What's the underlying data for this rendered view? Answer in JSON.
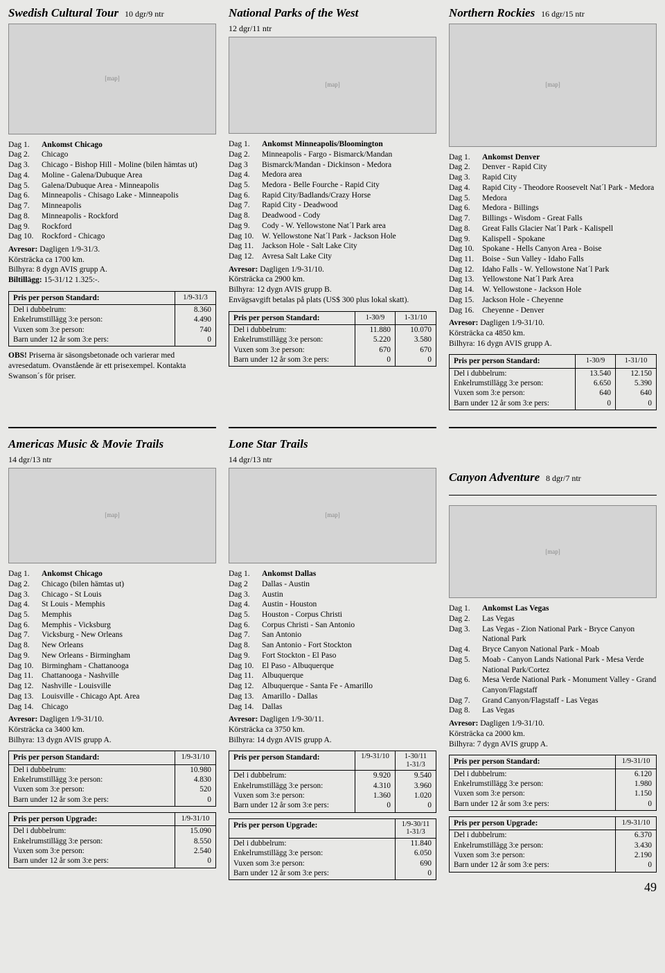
{
  "page_number": "49",
  "row_labels": {
    "dubbelrum": "Del i dubbelrum:",
    "enkel": "Enkelrumstillägg 3:e person:",
    "vuxen": "Vuxen som 3:e person:",
    "barn": "Barn under 12 år som 3:e pers:"
  },
  "tours": {
    "swedish": {
      "title": "Swedish Cultural Tour",
      "sub": "10 dgr/9 ntr",
      "map_h": 160,
      "itinerary": [
        {
          "day": "Dag 1.",
          "text": "Ankomst Chicago",
          "bold": true
        },
        {
          "day": "Dag 2.",
          "text": "Chicago"
        },
        {
          "day": "Dag 3.",
          "text": "Chicago - Bishop Hill - Moline (bilen hämtas ut)"
        },
        {
          "day": "Dag 4.",
          "text": "Moline - Galena/Dubuque Area"
        },
        {
          "day": "Dag 5.",
          "text": "Galena/Dubuque Area - Minneapolis"
        },
        {
          "day": "Dag 6.",
          "text": "Minneapolis - Chisago Lake - Minneapolis"
        },
        {
          "day": "Dag 7.",
          "text": "Minneapolis"
        },
        {
          "day": "Dag 8.",
          "text": "Minneapolis - Rockford"
        },
        {
          "day": "Dag 9.",
          "text": "Rockford"
        },
        {
          "day": "Dag 10.",
          "text": "Rockford - Chicago"
        }
      ],
      "info": [
        {
          "lbl": "Avresor:",
          "txt": " Dagligen 1/9-31/3."
        },
        {
          "lbl": "",
          "txt": "Körsträcka ca 1700 km."
        },
        {
          "lbl": "",
          "txt": "Bilhyra: 8 dygn AVIS grupp A."
        },
        {
          "lbl": "Biltillägg:",
          "txt": " 15-31/12 1.325:-."
        }
      ],
      "tables": [
        {
          "head_label": "Pris per person Standard:",
          "cols": [
            "1/9-31/3"
          ],
          "rows": [
            [
              "8.360"
            ],
            [
              "4.490"
            ],
            [
              "740"
            ],
            [
              "0"
            ]
          ]
        }
      ],
      "note": {
        "lbl": "OBS!",
        "txt": " Priserna är säsongsbetonade och varierar med avresedatum. Ovanstående är ett prisexempel. Kontakta Swanson´s för priser."
      }
    },
    "natparks": {
      "title": "National Parks of the West",
      "sub": "12 dgr/11 ntr",
      "map_h": 140,
      "itinerary": [
        {
          "day": "Dag 1.",
          "text": "Ankomst Minneapolis/Bloomington",
          "bold": true
        },
        {
          "day": "Dag 2.",
          "text": "Minneapolis - Fargo - Bismarck/Mandan"
        },
        {
          "day": "Dag 3",
          "text": "Bismarck/Mandan - Dickinson - Medora"
        },
        {
          "day": "Dag 4.",
          "text": "Medora area"
        },
        {
          "day": "Dag 5.",
          "text": "Medora - Belle Fourche - Rapid City"
        },
        {
          "day": "Dag 6.",
          "text": "Rapid City/Badlands/Crazy Horse"
        },
        {
          "day": "Dag 7.",
          "text": "Rapid City - Deadwood"
        },
        {
          "day": "Dag 8.",
          "text": "Deadwood - Cody"
        },
        {
          "day": "Dag 9.",
          "text": "Cody - W. Yellowstone Nat´l Park area"
        },
        {
          "day": "Dag 10.",
          "text": "W. Yellowstone Nat´l Park - Jackson Hole"
        },
        {
          "day": "Dag 11.",
          "text": "Jackson Hole - Salt Lake City"
        },
        {
          "day": "Dag 12.",
          "text": "Avresa Salt Lake City"
        }
      ],
      "info": [
        {
          "lbl": "Avresor:",
          "txt": " Dagligen 1/9-31/10."
        },
        {
          "lbl": "",
          "txt": "Körsträcka ca 2900 km."
        },
        {
          "lbl": "",
          "txt": "Bilhyra: 12 dygn AVIS grupp B."
        },
        {
          "lbl": "",
          "txt": "Envägsavgift betalas på plats (US$ 300 plus lokal skatt)."
        }
      ],
      "tables": [
        {
          "head_label": "Pris per person Standard:",
          "cols": [
            "1-30/9",
            "1-31/10"
          ],
          "rows": [
            [
              "11.880",
              "10.070"
            ],
            [
              "5.220",
              "3.580"
            ],
            [
              "670",
              "670"
            ],
            [
              "0",
              "0"
            ]
          ]
        }
      ]
    },
    "rockies": {
      "title": "Northern Rockies",
      "sub": "16 dgr/15 ntr",
      "map_h": 178,
      "itinerary": [
        {
          "day": "Dag 1.",
          "text": "Ankomst Denver",
          "bold": true
        },
        {
          "day": "Dag 2.",
          "text": "Denver - Rapid City"
        },
        {
          "day": "Dag 3.",
          "text": "Rapid City"
        },
        {
          "day": "Dag 4.",
          "text": "Rapid City - Theodore Roosevelt Nat´l Park - Medora"
        },
        {
          "day": "Dag 5.",
          "text": "Medora"
        },
        {
          "day": "Dag 6.",
          "text": "Medora - Billings"
        },
        {
          "day": "Dag 7.",
          "text": "Billings - Wisdom - Great Falls"
        },
        {
          "day": "Dag 8.",
          "text": "Great Falls Glacier Nat´l Park - Kalispell"
        },
        {
          "day": "Dag 9.",
          "text": "Kalispell - Spokane"
        },
        {
          "day": "Dag 10.",
          "text": "Spokane - Hells Canyon Area - Boise"
        },
        {
          "day": "Dag 11.",
          "text": "Boise - Sun  Valley - Idaho Falls"
        },
        {
          "day": "Dag 12.",
          "text": "Idaho Falls - W. Yellowstone Nat´l Park"
        },
        {
          "day": "Dag 13.",
          "text": "Yellowstone Nat´l Park Area"
        },
        {
          "day": "Dag 14.",
          "text": "W. Yellowstone - Jackson Hole"
        },
        {
          "day": "Dag 15.",
          "text": "Jackson Hole - Cheyenne"
        },
        {
          "day": "Dag 16.",
          "text": "Cheyenne - Denver"
        }
      ],
      "info": [
        {
          "lbl": "Avresor:",
          "txt": " Dagligen 1/9-31/10."
        },
        {
          "lbl": "",
          "txt": "Körsträcka ca 4850 km."
        },
        {
          "lbl": "",
          "txt": "Bilhyra: 16 dygn AVIS grupp A."
        }
      ],
      "tables": [
        {
          "head_label": "Pris per person Standard:",
          "cols": [
            "1-30/9",
            "1-31/10"
          ],
          "rows": [
            [
              "13.540",
              "12.150"
            ],
            [
              "6.650",
              "5.390"
            ],
            [
              "640",
              "640"
            ],
            [
              "0",
              "0"
            ]
          ]
        }
      ]
    },
    "americas": {
      "title": "Americas Music & Movie Trails",
      "sub": "14 dgr/13 ntr",
      "map_h": 138,
      "itinerary": [
        {
          "day": "Dag 1.",
          "text": "Ankomst Chicago",
          "bold": true
        },
        {
          "day": "Dag 2.",
          "text": "Chicago (bilen hämtas ut)"
        },
        {
          "day": "Dag 3.",
          "text": "Chicago - St Louis"
        },
        {
          "day": "Dag 4.",
          "text": "St Louis - Memphis"
        },
        {
          "day": "Dag 5.",
          "text": "Memphis"
        },
        {
          "day": "Dag 6.",
          "text": "Memphis - Vicksburg"
        },
        {
          "day": "Dag 7.",
          "text": "Vicksburg - New Orleans"
        },
        {
          "day": "Dag 8.",
          "text": "New Orleans"
        },
        {
          "day": "Dag 9.",
          "text": "New Orleans - Birmingham"
        },
        {
          "day": "Dag 10.",
          "text": "Birmingham - Chattanooga"
        },
        {
          "day": "Dag 11.",
          "text": "Chattanooga - Nashville"
        },
        {
          "day": "Dag 12.",
          "text": "Nashville - Louisville"
        },
        {
          "day": "Dag 13.",
          "text": "Louisville - Chicago Apt. Area"
        },
        {
          "day": "Dag 14.",
          "text": "Chicago"
        }
      ],
      "info": [
        {
          "lbl": "Avresor:",
          "txt": " Dagligen 1/9-31/10."
        },
        {
          "lbl": "",
          "txt": "Körsträcka ca 3400 km."
        },
        {
          "lbl": "",
          "txt": "Bilhyra: 13 dygn AVIS grupp A."
        }
      ],
      "tables": [
        {
          "head_label": "Pris per person Standard:",
          "cols": [
            "1/9-31/10"
          ],
          "rows": [
            [
              "10.980"
            ],
            [
              "4.830"
            ],
            [
              "520"
            ],
            [
              "0"
            ]
          ]
        },
        {
          "head_label": "Pris per person Upgrade:",
          "cols": [
            "1/9-31/10"
          ],
          "rows": [
            [
              "15.090"
            ],
            [
              "8.550"
            ],
            [
              "2.540"
            ],
            [
              "0"
            ]
          ]
        }
      ]
    },
    "lonestar": {
      "title": "Lone Star Trails",
      "sub": "14 dgr/13 ntr",
      "map_h": 138,
      "itinerary": [
        {
          "day": "Dag 1.",
          "text": "Ankomst Dallas",
          "bold": true
        },
        {
          "day": "Dag 2",
          "text": "Dallas - Austin"
        },
        {
          "day": "Dag 3.",
          "text": "Austin"
        },
        {
          "day": "Dag 4.",
          "text": "Austin - Houston"
        },
        {
          "day": "Dag 5.",
          "text": "Houston - Corpus Christi"
        },
        {
          "day": "Dag 6.",
          "text": "Corpus Christi - San Antonio"
        },
        {
          "day": "Dag 7.",
          "text": "San Antonio"
        },
        {
          "day": "Dag 8.",
          "text": "San Antonio - Fort Stockton"
        },
        {
          "day": "Dag 9.",
          "text": "Fort Stockton - El Paso"
        },
        {
          "day": "Dag 10.",
          "text": "El Paso - Albuquerque"
        },
        {
          "day": "Dag 11.",
          "text": "Albuquerque"
        },
        {
          "day": "Dag 12.",
          "text": "Albuquerque - Santa Fe - Amarillo"
        },
        {
          "day": "Dag 13.",
          "text": "Amarillo - Dallas"
        },
        {
          "day": "Dag 14.",
          "text": "Dallas"
        }
      ],
      "info": [
        {
          "lbl": "Avresor:",
          "txt": " Dagligen 1/9-30/11."
        },
        {
          "lbl": "",
          "txt": "Körsträcka ca 3750 km."
        },
        {
          "lbl": "",
          "txt": "Bilhyra: 14 dygn AVIS grupp A."
        }
      ],
      "tables": [
        {
          "head_label": "Pris per person Standard:",
          "cols_stacked": [
            [
              "1/9-31/10"
            ],
            [
              "1-30/11",
              "1-31/3"
            ]
          ],
          "rows": [
            [
              "9.920",
              "9.540"
            ],
            [
              "4.310",
              "3.960"
            ],
            [
              "1.360",
              "1.020"
            ],
            [
              "0",
              "0"
            ]
          ]
        },
        {
          "head_label": "Pris per person Upgrade:",
          "cols_stacked": [
            [
              "1/9-30/11",
              "1-31/3"
            ]
          ],
          "rows": [
            [
              "11.840"
            ],
            [
              "6.050"
            ],
            [
              "690"
            ],
            [
              "0"
            ]
          ]
        }
      ]
    },
    "canyon": {
      "title": "Canyon Adventure",
      "sub": "8 dgr/7 ntr",
      "map_h": 134,
      "itinerary": [
        {
          "day": "Dag 1.",
          "text": "Ankomst Las Vegas",
          "bold": true
        },
        {
          "day": "Dag 2.",
          "text": "Las Vegas"
        },
        {
          "day": "Dag 3.",
          "text": "Las Vegas - Zion National Park - Bryce Canyon National Park"
        },
        {
          "day": "Dag 4.",
          "text": "Bryce Canyon National Park - Moab"
        },
        {
          "day": "Dag 5.",
          "text": "Moab - Canyon Lands National Park - Mesa Verde National Park/Cortez"
        },
        {
          "day": "Dag 6.",
          "text": "Mesa Verde National Park - Monument Valley - Grand Canyon/Flagstaff"
        },
        {
          "day": "Dag 7.",
          "text": "Grand Canyon/Flagstaff - Las Vegas"
        },
        {
          "day": "Dag 8.",
          "text": "Las Vegas"
        }
      ],
      "info": [
        {
          "lbl": "Avresor:",
          "txt": " Dagligen 1/9-31/10."
        },
        {
          "lbl": "",
          "txt": "Körsträcka ca 2000 km."
        },
        {
          "lbl": "",
          "txt": "Bilhyra: 7 dygn AVIS grupp A."
        }
      ],
      "tables": [
        {
          "head_label": "Pris per person Standard:",
          "cols": [
            "1/9-31/10"
          ],
          "rows": [
            [
              "6.120"
            ],
            [
              "1.980"
            ],
            [
              "1.150"
            ],
            [
              "0"
            ]
          ]
        },
        {
          "head_label": "Pris per person Upgrade:",
          "cols": [
            "1/9-31/10"
          ],
          "rows": [
            [
              "6.370"
            ],
            [
              "3.430"
            ],
            [
              "2.190"
            ],
            [
              "0"
            ]
          ]
        }
      ]
    }
  }
}
